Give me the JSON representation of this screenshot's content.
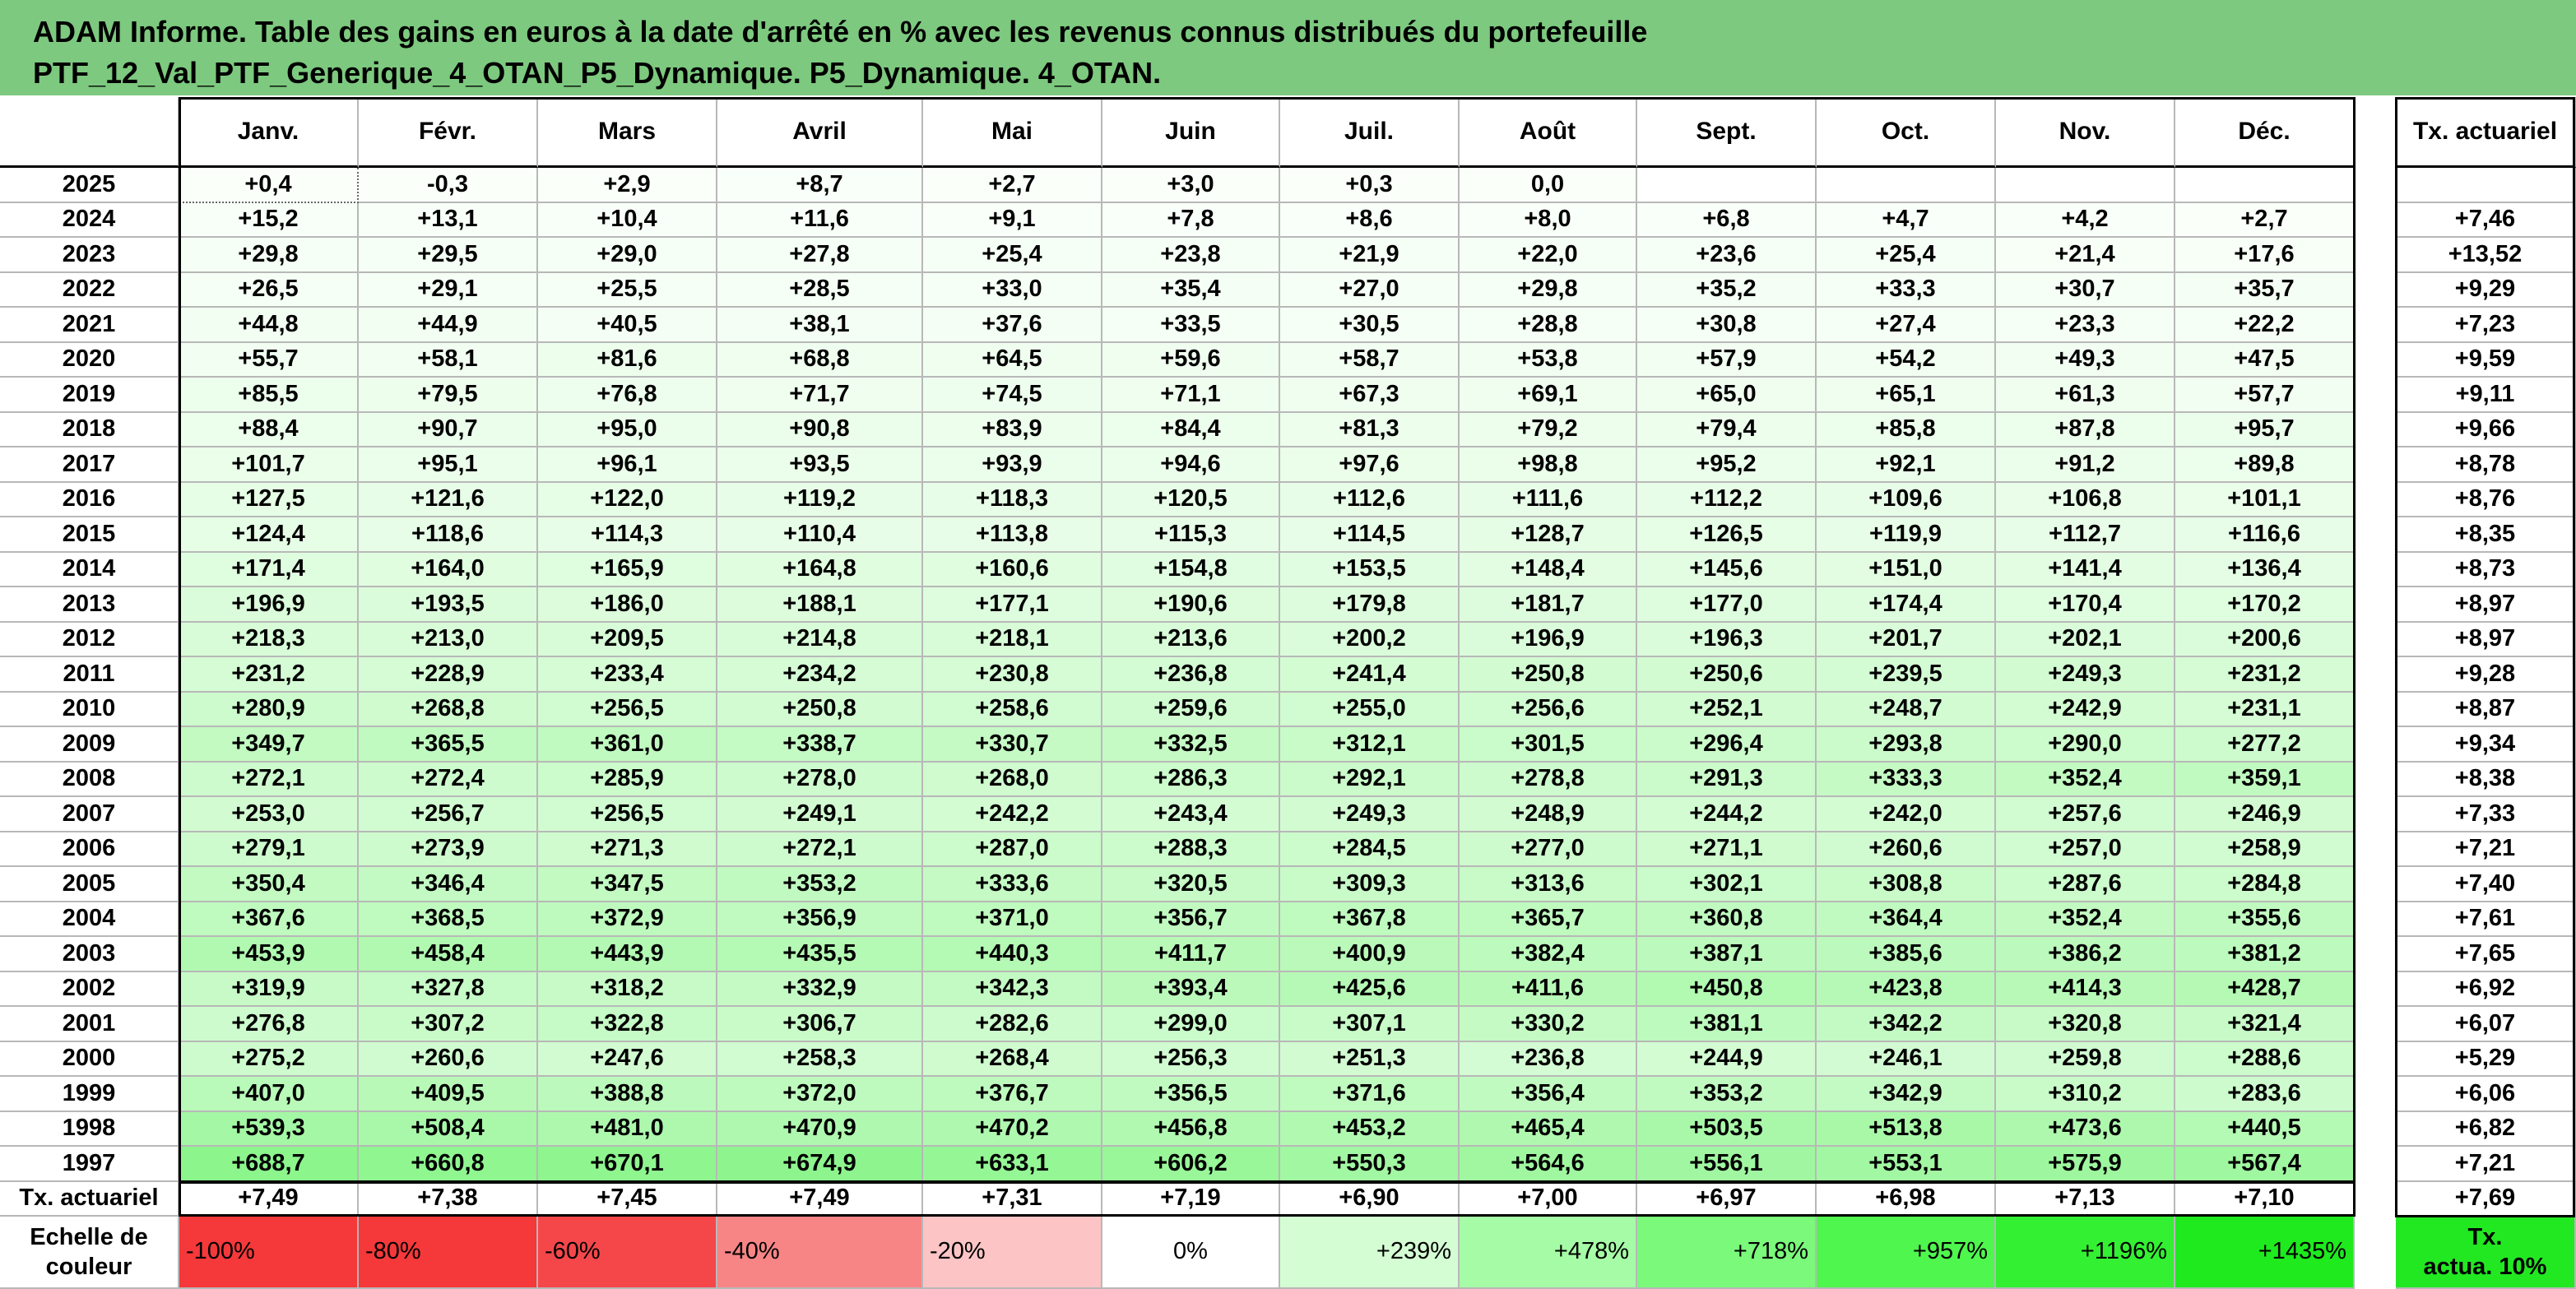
{
  "title": {
    "line1": "ADAM Informe. Table des gains en euros à la date d'arrêté en % avec les revenus connus distribués du portefeuille",
    "line2": "PTF_12_Val_PTF_Generique_4_OTAN_P5_Dynamique. P5_Dynamique. 4_OTAN."
  },
  "months": [
    "Janv.",
    "Févr.",
    "Mars",
    "Avril",
    "Mai",
    "Juin",
    "Juil.",
    "Août",
    "Sept.",
    "Oct.",
    "Nov.",
    "Déc."
  ],
  "actuarial_header": "Tx. actuariel",
  "rows": [
    {
      "year": "2025",
      "values": [
        "+0,4",
        "-0,3",
        "+2,9",
        "+8,7",
        "+2,7",
        "+3,0",
        "+0,3",
        "0,0",
        "",
        "",
        "",
        ""
      ],
      "actuarial": ""
    },
    {
      "year": "2024",
      "values": [
        "+15,2",
        "+13,1",
        "+10,4",
        "+11,6",
        "+9,1",
        "+7,8",
        "+8,6",
        "+8,0",
        "+6,8",
        "+4,7",
        "+4,2",
        "+2,7"
      ],
      "actuarial": "+7,46"
    },
    {
      "year": "2023",
      "values": [
        "+29,8",
        "+29,5",
        "+29,0",
        "+27,8",
        "+25,4",
        "+23,8",
        "+21,9",
        "+22,0",
        "+23,6",
        "+25,4",
        "+21,4",
        "+17,6"
      ],
      "actuarial": "+13,52"
    },
    {
      "year": "2022",
      "values": [
        "+26,5",
        "+29,1",
        "+25,5",
        "+28,5",
        "+33,0",
        "+35,4",
        "+27,0",
        "+29,8",
        "+35,2",
        "+33,3",
        "+30,7",
        "+35,7"
      ],
      "actuarial": "+9,29"
    },
    {
      "year": "2021",
      "values": [
        "+44,8",
        "+44,9",
        "+40,5",
        "+38,1",
        "+37,6",
        "+33,5",
        "+30,5",
        "+28,8",
        "+30,8",
        "+27,4",
        "+23,3",
        "+22,2"
      ],
      "actuarial": "+7,23"
    },
    {
      "year": "2020",
      "values": [
        "+55,7",
        "+58,1",
        "+81,6",
        "+68,8",
        "+64,5",
        "+59,6",
        "+58,7",
        "+53,8",
        "+57,9",
        "+54,2",
        "+49,3",
        "+47,5"
      ],
      "actuarial": "+9,59"
    },
    {
      "year": "2019",
      "values": [
        "+85,5",
        "+79,5",
        "+76,8",
        "+71,7",
        "+74,5",
        "+71,1",
        "+67,3",
        "+69,1",
        "+65,0",
        "+65,1",
        "+61,3",
        "+57,7"
      ],
      "actuarial": "+9,11"
    },
    {
      "year": "2018",
      "values": [
        "+88,4",
        "+90,7",
        "+95,0",
        "+90,8",
        "+83,9",
        "+84,4",
        "+81,3",
        "+79,2",
        "+79,4",
        "+85,8",
        "+87,8",
        "+95,7"
      ],
      "actuarial": "+9,66"
    },
    {
      "year": "2017",
      "values": [
        "+101,7",
        "+95,1",
        "+96,1",
        "+93,5",
        "+93,9",
        "+94,6",
        "+97,6",
        "+98,8",
        "+95,2",
        "+92,1",
        "+91,2",
        "+89,8"
      ],
      "actuarial": "+8,78"
    },
    {
      "year": "2016",
      "values": [
        "+127,5",
        "+121,6",
        "+122,0",
        "+119,2",
        "+118,3",
        "+120,5",
        "+112,6",
        "+111,6",
        "+112,2",
        "+109,6",
        "+106,8",
        "+101,1"
      ],
      "actuarial": "+8,76"
    },
    {
      "year": "2015",
      "values": [
        "+124,4",
        "+118,6",
        "+114,3",
        "+110,4",
        "+113,8",
        "+115,3",
        "+114,5",
        "+128,7",
        "+126,5",
        "+119,9",
        "+112,7",
        "+116,6"
      ],
      "actuarial": "+8,35"
    },
    {
      "year": "2014",
      "values": [
        "+171,4",
        "+164,0",
        "+165,9",
        "+164,8",
        "+160,6",
        "+154,8",
        "+153,5",
        "+148,4",
        "+145,6",
        "+151,0",
        "+141,4",
        "+136,4"
      ],
      "actuarial": "+8,73"
    },
    {
      "year": "2013",
      "values": [
        "+196,9",
        "+193,5",
        "+186,0",
        "+188,1",
        "+177,1",
        "+190,6",
        "+179,8",
        "+181,7",
        "+177,0",
        "+174,4",
        "+170,4",
        "+170,2"
      ],
      "actuarial": "+8,97"
    },
    {
      "year": "2012",
      "values": [
        "+218,3",
        "+213,0",
        "+209,5",
        "+214,8",
        "+218,1",
        "+213,6",
        "+200,2",
        "+196,9",
        "+196,3",
        "+201,7",
        "+202,1",
        "+200,6"
      ],
      "actuarial": "+8,97"
    },
    {
      "year": "2011",
      "values": [
        "+231,2",
        "+228,9",
        "+233,4",
        "+234,2",
        "+230,8",
        "+236,8",
        "+241,4",
        "+250,8",
        "+250,6",
        "+239,5",
        "+249,3",
        "+231,2"
      ],
      "actuarial": "+9,28"
    },
    {
      "year": "2010",
      "values": [
        "+280,9",
        "+268,8",
        "+256,5",
        "+250,8",
        "+258,6",
        "+259,6",
        "+255,0",
        "+256,6",
        "+252,1",
        "+248,7",
        "+242,9",
        "+231,1"
      ],
      "actuarial": "+8,87"
    },
    {
      "year": "2009",
      "values": [
        "+349,7",
        "+365,5",
        "+361,0",
        "+338,7",
        "+330,7",
        "+332,5",
        "+312,1",
        "+301,5",
        "+296,4",
        "+293,8",
        "+290,0",
        "+277,2"
      ],
      "actuarial": "+9,34"
    },
    {
      "year": "2008",
      "values": [
        "+272,1",
        "+272,4",
        "+285,9",
        "+278,0",
        "+268,0",
        "+286,3",
        "+292,1",
        "+278,8",
        "+291,3",
        "+333,3",
        "+352,4",
        "+359,1"
      ],
      "actuarial": "+8,38"
    },
    {
      "year": "2007",
      "values": [
        "+253,0",
        "+256,7",
        "+256,5",
        "+249,1",
        "+242,2",
        "+243,4",
        "+249,3",
        "+248,9",
        "+244,2",
        "+242,0",
        "+257,6",
        "+246,9"
      ],
      "actuarial": "+7,33"
    },
    {
      "year": "2006",
      "values": [
        "+279,1",
        "+273,9",
        "+271,3",
        "+272,1",
        "+287,0",
        "+288,3",
        "+284,5",
        "+277,0",
        "+271,1",
        "+260,6",
        "+257,0",
        "+258,9"
      ],
      "actuarial": "+7,21"
    },
    {
      "year": "2005",
      "values": [
        "+350,4",
        "+346,4",
        "+347,5",
        "+353,2",
        "+333,6",
        "+320,5",
        "+309,3",
        "+313,6",
        "+302,1",
        "+308,8",
        "+287,6",
        "+284,8"
      ],
      "actuarial": "+7,40"
    },
    {
      "year": "2004",
      "values": [
        "+367,6",
        "+368,5",
        "+372,9",
        "+356,9",
        "+371,0",
        "+356,7",
        "+367,8",
        "+365,7",
        "+360,8",
        "+364,4",
        "+352,4",
        "+355,6"
      ],
      "actuarial": "+7,61"
    },
    {
      "year": "2003",
      "values": [
        "+453,9",
        "+458,4",
        "+443,9",
        "+435,5",
        "+440,3",
        "+411,7",
        "+400,9",
        "+382,4",
        "+387,1",
        "+385,6",
        "+386,2",
        "+381,2"
      ],
      "actuarial": "+7,65"
    },
    {
      "year": "2002",
      "values": [
        "+319,9",
        "+327,8",
        "+318,2",
        "+332,9",
        "+342,3",
        "+393,4",
        "+425,6",
        "+411,6",
        "+450,8",
        "+423,8",
        "+414,3",
        "+428,7"
      ],
      "actuarial": "+6,92"
    },
    {
      "year": "2001",
      "values": [
        "+276,8",
        "+307,2",
        "+322,8",
        "+306,7",
        "+282,6",
        "+299,0",
        "+307,1",
        "+330,2",
        "+381,1",
        "+342,2",
        "+320,8",
        "+321,4"
      ],
      "actuarial": "+6,07"
    },
    {
      "year": "2000",
      "values": [
        "+275,2",
        "+260,6",
        "+247,6",
        "+258,3",
        "+268,4",
        "+256,3",
        "+251,3",
        "+236,8",
        "+244,9",
        "+246,1",
        "+259,8",
        "+288,6"
      ],
      "actuarial": "+5,29"
    },
    {
      "year": "1999",
      "values": [
        "+407,0",
        "+409,5",
        "+388,8",
        "+372,0",
        "+376,7",
        "+356,5",
        "+371,6",
        "+356,4",
        "+353,2",
        "+342,9",
        "+310,2",
        "+283,6"
      ],
      "actuarial": "+6,06"
    },
    {
      "year": "1998",
      "values": [
        "+539,3",
        "+508,4",
        "+481,0",
        "+470,9",
        "+470,2",
        "+456,8",
        "+453,2",
        "+465,4",
        "+503,5",
        "+513,8",
        "+473,6",
        "+440,5"
      ],
      "actuarial": "+6,82"
    },
    {
      "year": "1997",
      "values": [
        "+688,7",
        "+660,8",
        "+670,1",
        "+674,9",
        "+633,1",
        "+606,2",
        "+550,3",
        "+564,6",
        "+556,1",
        "+553,1",
        "+575,9",
        "+567,4"
      ],
      "actuarial": "+7,21"
    }
  ],
  "actuarial_row": {
    "label": "Tx. actuariel",
    "values": [
      "+7,49",
      "+7,38",
      "+7,45",
      "+7,49",
      "+7,31",
      "+7,19",
      "+6,90",
      "+7,00",
      "+6,97",
      "+6,98",
      "+7,13",
      "+7,10"
    ],
    "total": "+7,69"
  },
  "color_scale": {
    "label_line1": "Echelle de",
    "label_line2": "couleur",
    "steps": [
      {
        "text": "-100%",
        "color": "#f5383a",
        "align": "l"
      },
      {
        "text": "-80%",
        "color": "#f5383a",
        "align": "l"
      },
      {
        "text": "-60%",
        "color": "#f5474a",
        "align": "l"
      },
      {
        "text": "-40%",
        "color": "#f88586",
        "align": "l"
      },
      {
        "text": "-20%",
        "color": "#fcc4c5",
        "align": "l"
      },
      {
        "text": "0%",
        "color": "#ffffff",
        "align": "c"
      },
      {
        "text": "+239%",
        "color": "#d4fdd4",
        "align": "r"
      },
      {
        "text": "+478%",
        "color": "#a6fca6",
        "align": "r"
      },
      {
        "text": "+718%",
        "color": "#7af97a",
        "align": "r"
      },
      {
        "text": "+957%",
        "color": "#4ef64e",
        "align": "r"
      },
      {
        "text": "+1196%",
        "color": "#33f033",
        "align": "r"
      },
      {
        "text": "+1435%",
        "color": "#1eea1e",
        "align": "r"
      }
    ],
    "actuarial_line1": "Tx.",
    "actuarial_line2": "actua. 10%",
    "actuarial_color": "#22e822"
  },
  "colors": {
    "title_bg": "#7dc97f",
    "gain_low": "#ffffff",
    "gain_high": "#8af58a"
  }
}
